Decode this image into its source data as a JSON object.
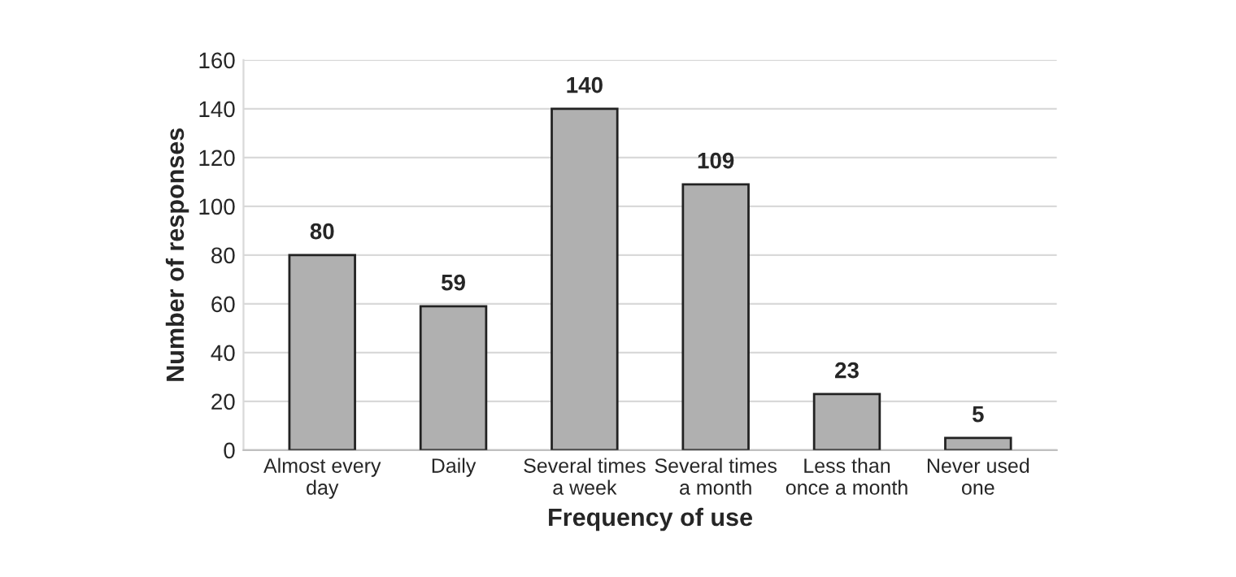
{
  "chart_data": {
    "type": "bar",
    "xlabel": "Frequency of use",
    "ylabel": "Number of responses",
    "categories": [
      "Almost every\nday",
      "Daily",
      "Several times\na week",
      "Several times\na month",
      "Less than\nonce a month",
      "Never used\none"
    ],
    "values": [
      80,
      59,
      140,
      109,
      23,
      5
    ],
    "color": "#b0b0b0",
    "ylim": [
      0,
      160
    ],
    "yticks": [
      0,
      20,
      40,
      60,
      80,
      100,
      120,
      140,
      160
    ],
    "grid": "y",
    "data_labels": true
  }
}
